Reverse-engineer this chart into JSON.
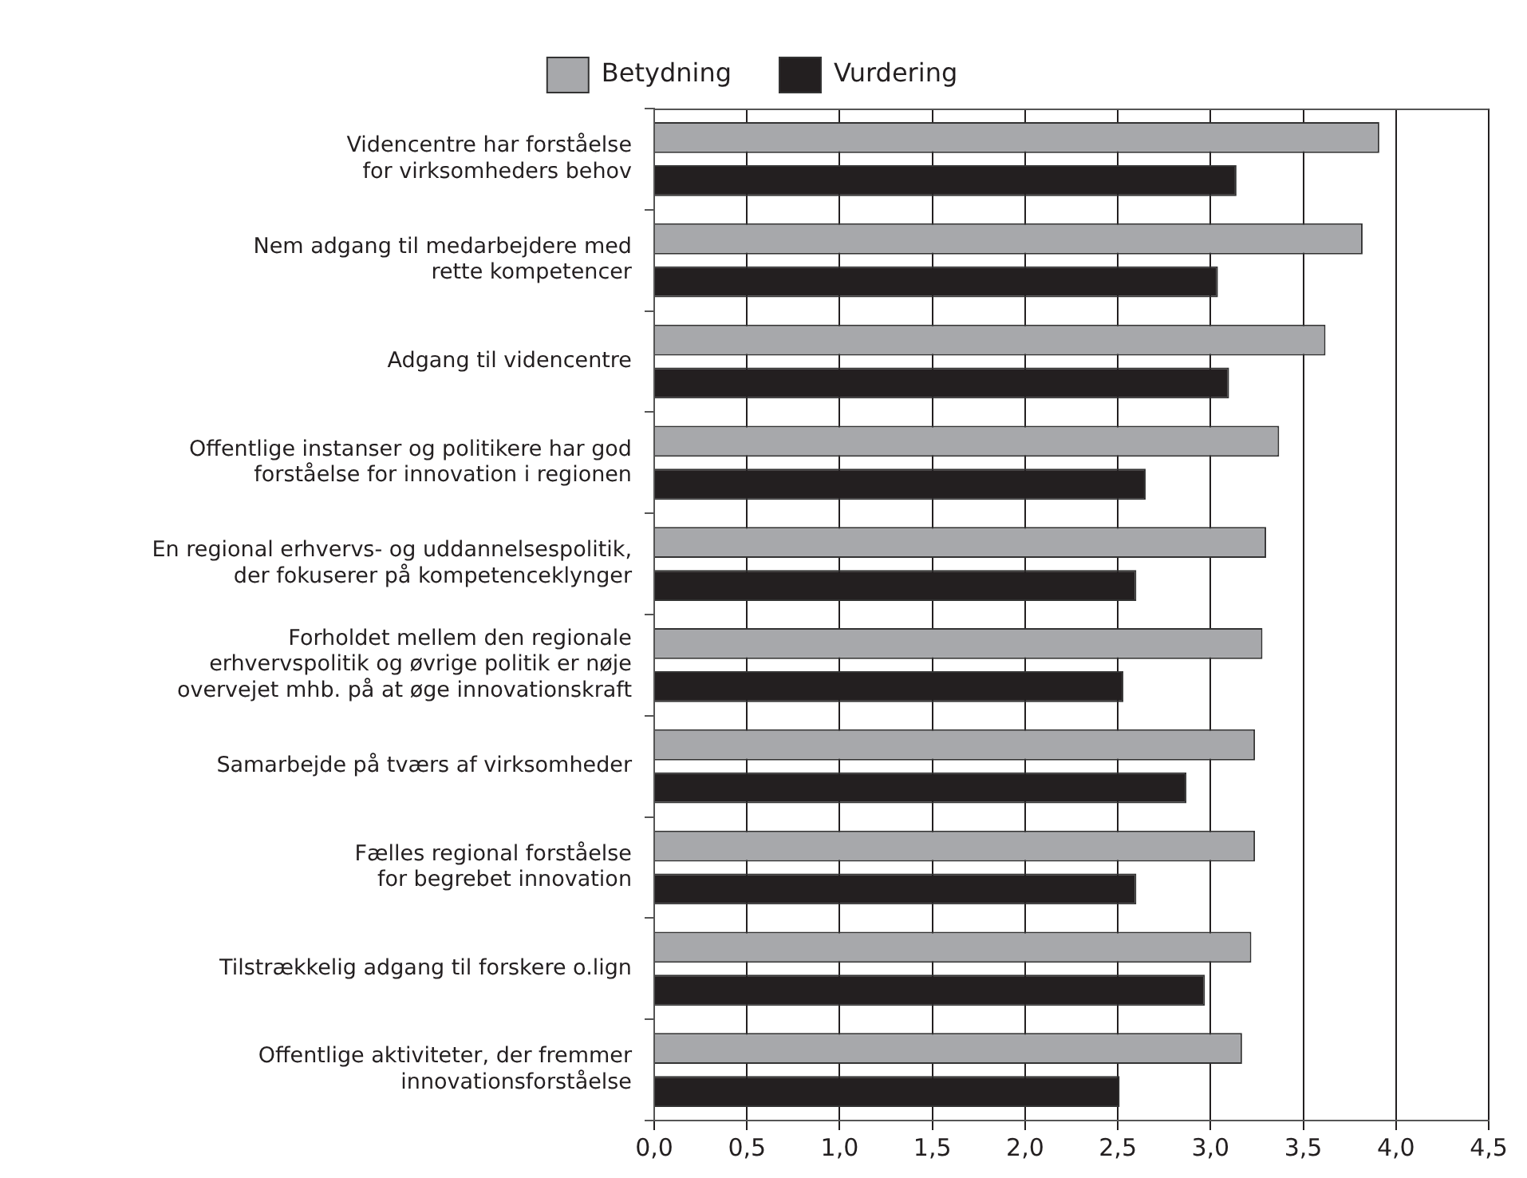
{
  "chart_data": {
    "type": "bar",
    "orientation": "horizontal",
    "categories": [
      "Videncentre har forståelse\nfor virksomheders behov",
      "Nem adgang til medarbejdere med\nrette kompetencer",
      "Adgang til videncentre",
      "Offentlige instanser og politikere har god\nforståelse for innovation i regionen",
      "En regional erhvervs- og uddannelsespolitik,\nder fokuserer på kompetenceklynger",
      "Forholdet mellem den regionale\nerhvervspolitik og øvrige politik er nøje\novervejet mhb. på at øge innovationskraft",
      "Samarbejde på tværs af virksomheder",
      "Fælles regional forståelse\nfor begrebet innovation",
      "Tilstrækkelig adgang til forskere o.lign",
      "Offentlige aktiviteter, der fremmer\ninnovationsforståelse"
    ],
    "series": [
      {
        "name": "Betydning",
        "color": "#a7a8ab",
        "values": [
          3.91,
          3.82,
          3.62,
          3.37,
          3.3,
          3.28,
          3.24,
          3.24,
          3.22,
          3.17
        ]
      },
      {
        "name": "Vurdering",
        "color": "#231f20",
        "values": [
          3.14,
          3.04,
          3.1,
          2.65,
          2.6,
          2.53,
          2.87,
          2.6,
          2.97,
          2.51
        ]
      }
    ],
    "xlim": [
      0,
      4.5
    ],
    "xticks": [
      {
        "value": 0,
        "label": "0,0"
      },
      {
        "value": 0.5,
        "label": "0,5"
      },
      {
        "value": 1,
        "label": "1,0"
      },
      {
        "value": 1.5,
        "label": "1,5"
      },
      {
        "value": 2,
        "label": "2,0"
      },
      {
        "value": 2.5,
        "label": "2,5"
      },
      {
        "value": 3,
        "label": "3,0"
      },
      {
        "value": 3.5,
        "label": "3,5"
      },
      {
        "value": 4,
        "label": "4,0"
      },
      {
        "value": 4.5,
        "label": "4,5"
      }
    ],
    "grid": "x",
    "legend": "top"
  }
}
